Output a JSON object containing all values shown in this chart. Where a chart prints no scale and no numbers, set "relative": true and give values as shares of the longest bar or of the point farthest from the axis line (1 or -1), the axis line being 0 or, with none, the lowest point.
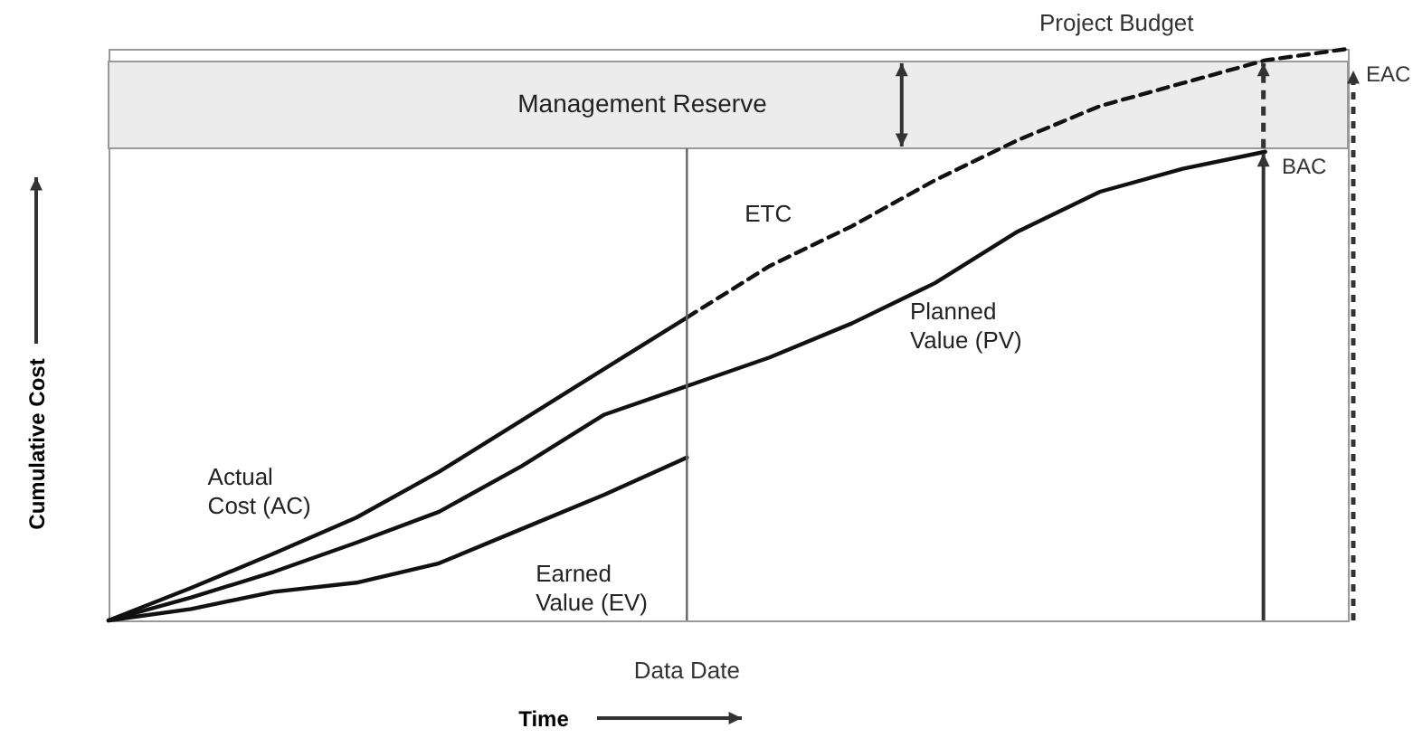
{
  "chart_data": {
    "type": "line",
    "relative": true,
    "xlabel": "Time",
    "ylabel": "Cumulative Cost",
    "grid": false,
    "marker": "none",
    "line_style": "solid",
    "categories": [
      null,
      null,
      null,
      null,
      null,
      null,
      null,
      null,
      null,
      null,
      null,
      null,
      null,
      null,
      null,
      null
    ],
    "series": [
      {
        "name": "Actual Cost (AC)",
        "color": "#111111",
        "values": [
          0,
          0.057,
          0.117,
          0.18,
          0.26,
          0.35,
          0.44,
          0.53,
          null,
          null,
          null,
          null,
          null,
          null,
          null,
          null
        ]
      },
      {
        "name": "ETC",
        "color": "#111111",
        "line_style": "dashed",
        "values": [
          null,
          null,
          null,
          null,
          null,
          null,
          null,
          0.53,
          0.62,
          0.69,
          0.77,
          0.84,
          0.9,
          0.94,
          0.98,
          1.0
        ]
      },
      {
        "name": "Planned Value (PV)",
        "color": "#111111",
        "values": [
          0,
          0.04,
          0.085,
          0.136,
          0.19,
          0.27,
          0.36,
          0.41,
          0.46,
          0.52,
          0.59,
          0.68,
          0.75,
          0.79,
          0.82,
          null
        ]
      },
      {
        "name": "Earned Value (EV)",
        "color": "#111111",
        "values": [
          0,
          0.02,
          0.05,
          0.066,
          0.1,
          0.16,
          0.22,
          0.285,
          null,
          null,
          null,
          null,
          null,
          null,
          null,
          null
        ]
      }
    ],
    "bands": [
      {
        "axis": "y",
        "from": 0.826,
        "to": 0.978,
        "label": "Management Reserve",
        "color": "#ececec"
      }
    ],
    "annotations": [
      "Project Budget",
      "BAC",
      "EAC",
      "Data Date"
    ]
  }
}
